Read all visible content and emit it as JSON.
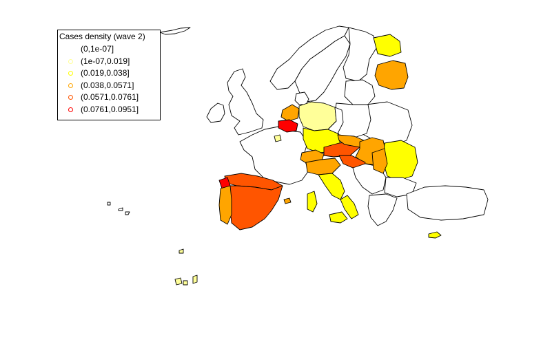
{
  "legend": {
    "title": "Cases density (wave 2)",
    "items": [
      {
        "label": "(0,1e-07]",
        "color": "#ffffff"
      },
      {
        "label": "(1e-07,0.019]",
        "color": "#ffff99"
      },
      {
        "label": "(0.019,0.038]",
        "color": "#ffff00"
      },
      {
        "label": "(0.038,0.0571]",
        "color": "#ffa500"
      },
      {
        "label": "(0.0571,0.0761]",
        "color": "#ff5500"
      },
      {
        "label": "(0.0761,0.0951]",
        "color": "#ff0000"
      }
    ]
  },
  "map": {
    "regions": [
      {
        "name": "iceland",
        "class": 0
      },
      {
        "name": "ireland",
        "class": 0
      },
      {
        "name": "great-britain",
        "class": 0
      },
      {
        "name": "norway",
        "class": 0
      },
      {
        "name": "sweden",
        "class": 0
      },
      {
        "name": "finland",
        "class": 0
      },
      {
        "name": "finland-north",
        "class": 2
      },
      {
        "name": "finland-south",
        "class": 3
      },
      {
        "name": "denmark",
        "class": 0
      },
      {
        "name": "baltics",
        "class": 0
      },
      {
        "name": "poland",
        "class": 0
      },
      {
        "name": "belarus-ukraine",
        "class": 0
      },
      {
        "name": "france",
        "class": 0
      },
      {
        "name": "netherlands",
        "class": 3
      },
      {
        "name": "belgium",
        "class": 5
      },
      {
        "name": "luxembourg",
        "class": 1
      },
      {
        "name": "germany-north",
        "class": 1
      },
      {
        "name": "germany-south",
        "class": 2
      },
      {
        "name": "germany-east",
        "class": 0
      },
      {
        "name": "switzerland",
        "class": 3
      },
      {
        "name": "austria",
        "class": 4
      },
      {
        "name": "czechia",
        "class": 3
      },
      {
        "name": "slovakia-hungary",
        "class": 3
      },
      {
        "name": "italy-north",
        "class": 3
      },
      {
        "name": "italy-centre",
        "class": 2
      },
      {
        "name": "italy-south",
        "class": 2
      },
      {
        "name": "sardinia",
        "class": 2
      },
      {
        "name": "sicily",
        "class": 2
      },
      {
        "name": "slovenia-croatia",
        "class": 4
      },
      {
        "name": "balkans",
        "class": 0
      },
      {
        "name": "romania",
        "class": 2
      },
      {
        "name": "romania-west",
        "class": 3
      },
      {
        "name": "bulgaria",
        "class": 0
      },
      {
        "name": "greece",
        "class": 0
      },
      {
        "name": "turkey",
        "class": 0
      },
      {
        "name": "cyprus",
        "class": 2
      },
      {
        "name": "spain",
        "class": 4
      },
      {
        "name": "spain-north",
        "class": 4
      },
      {
        "name": "portugal",
        "class": 3
      },
      {
        "name": "galicia",
        "class": 5
      },
      {
        "name": "balearics",
        "class": 3
      },
      {
        "name": "canary-islands",
        "class": 1
      },
      {
        "name": "azores",
        "class": 0
      }
    ]
  }
}
